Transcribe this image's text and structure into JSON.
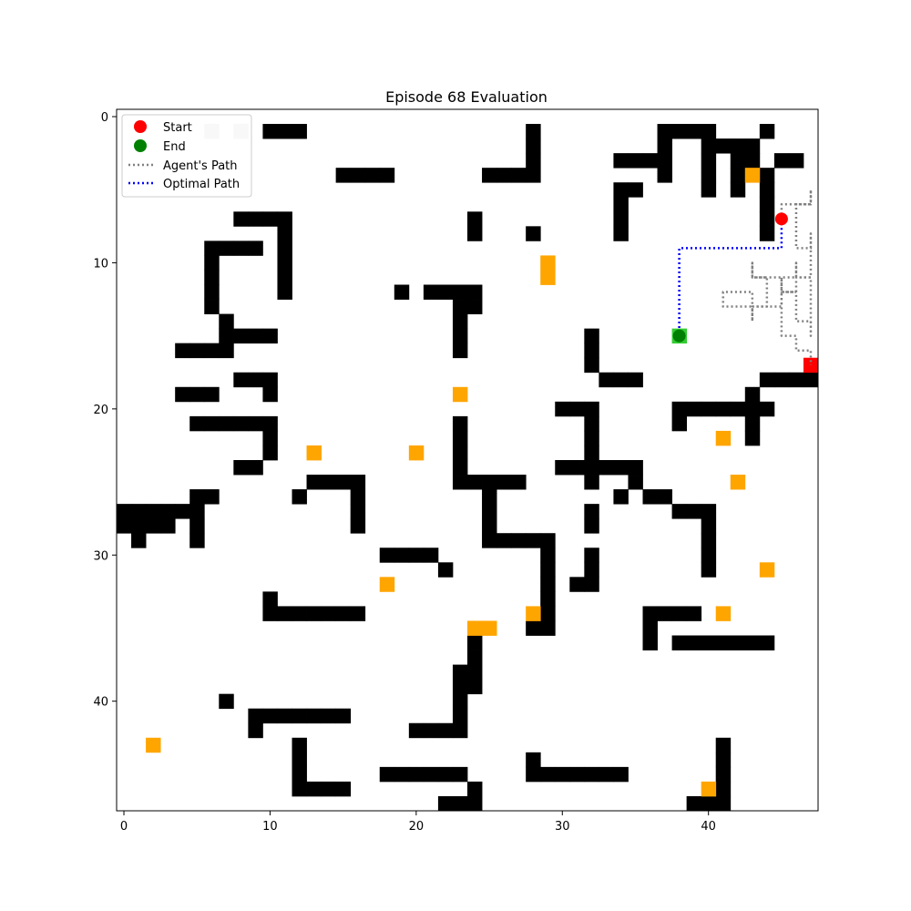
{
  "chart_data": {
    "type": "heatmap",
    "title": "Episode 68 Evaluation",
    "xlabel": "",
    "ylabel": "",
    "grid_size": 48,
    "xlim": [
      -0.5,
      47.5
    ],
    "ylim": [
      47.5,
      -0.5
    ],
    "x_ticks": [
      0,
      10,
      20,
      30,
      40
    ],
    "y_ticks": [
      0,
      10,
      20,
      30,
      40
    ],
    "grid": false,
    "legend": {
      "placement": "top-left",
      "entries": [
        {
          "label": "Start",
          "marker": "circle",
          "color": "#ff0000"
        },
        {
          "label": "End",
          "marker": "circle",
          "color": "#008000"
        },
        {
          "label": "Agent's Path",
          "marker": "dotted-line",
          "color": "#808080"
        },
        {
          "label": "Optimal Path",
          "marker": "dotted-line",
          "color": "#0000ff"
        }
      ]
    },
    "cell_colors": {
      "wall": "#000000",
      "item": "#ffa500",
      "visited": "#cccccc",
      "agent": "#ff0000",
      "goal": "#32cd32"
    },
    "walls": [
      [
        10,
        1
      ],
      [
        11,
        1
      ],
      [
        12,
        1
      ],
      [
        28,
        1
      ],
      [
        37,
        1
      ],
      [
        38,
        1
      ],
      [
        39,
        1
      ],
      [
        40,
        1
      ],
      [
        44,
        1
      ],
      [
        28,
        2
      ],
      [
        37,
        2
      ],
      [
        40,
        2
      ],
      [
        41,
        2
      ],
      [
        42,
        2
      ],
      [
        43,
        2
      ],
      [
        28,
        3
      ],
      [
        34,
        3
      ],
      [
        35,
        3
      ],
      [
        36,
        3
      ],
      [
        37,
        3
      ],
      [
        40,
        3
      ],
      [
        42,
        3
      ],
      [
        43,
        3
      ],
      [
        45,
        3
      ],
      [
        46,
        3
      ],
      [
        15,
        4
      ],
      [
        16,
        4
      ],
      [
        17,
        4
      ],
      [
        18,
        4
      ],
      [
        25,
        4
      ],
      [
        26,
        4
      ],
      [
        27,
        4
      ],
      [
        28,
        4
      ],
      [
        37,
        4
      ],
      [
        40,
        4
      ],
      [
        42,
        4
      ],
      [
        44,
        4
      ],
      [
        34,
        5
      ],
      [
        35,
        5
      ],
      [
        40,
        5
      ],
      [
        42,
        5
      ],
      [
        44,
        5
      ],
      [
        34,
        6
      ],
      [
        44,
        6
      ],
      [
        8,
        7
      ],
      [
        9,
        7
      ],
      [
        10,
        7
      ],
      [
        11,
        7
      ],
      [
        24,
        7
      ],
      [
        34,
        7
      ],
      [
        44,
        7
      ],
      [
        11,
        8
      ],
      [
        24,
        8
      ],
      [
        28,
        8
      ],
      [
        34,
        8
      ],
      [
        44,
        8
      ],
      [
        6,
        9
      ],
      [
        7,
        9
      ],
      [
        8,
        9
      ],
      [
        9,
        9
      ],
      [
        11,
        9
      ],
      [
        6,
        10
      ],
      [
        11,
        10
      ],
      [
        6,
        11
      ],
      [
        11,
        11
      ],
      [
        6,
        12
      ],
      [
        11,
        12
      ],
      [
        19,
        12
      ],
      [
        21,
        12
      ],
      [
        22,
        12
      ],
      [
        23,
        12
      ],
      [
        24,
        12
      ],
      [
        6,
        13
      ],
      [
        23,
        13
      ],
      [
        24,
        13
      ],
      [
        7,
        14
      ],
      [
        23,
        14
      ],
      [
        7,
        15
      ],
      [
        8,
        15
      ],
      [
        9,
        15
      ],
      [
        10,
        15
      ],
      [
        23,
        15
      ],
      [
        32,
        15
      ],
      [
        4,
        16
      ],
      [
        5,
        16
      ],
      [
        6,
        16
      ],
      [
        7,
        16
      ],
      [
        23,
        16
      ],
      [
        32,
        16
      ],
      [
        32,
        17
      ],
      [
        8,
        18
      ],
      [
        9,
        18
      ],
      [
        10,
        18
      ],
      [
        33,
        18
      ],
      [
        34,
        18
      ],
      [
        35,
        18
      ],
      [
        44,
        18
      ],
      [
        45,
        18
      ],
      [
        46,
        18
      ],
      [
        47,
        18
      ],
      [
        4,
        19
      ],
      [
        5,
        19
      ],
      [
        6,
        19
      ],
      [
        10,
        19
      ],
      [
        43,
        19
      ],
      [
        30,
        20
      ],
      [
        31,
        20
      ],
      [
        32,
        20
      ],
      [
        38,
        20
      ],
      [
        39,
        20
      ],
      [
        40,
        20
      ],
      [
        41,
        20
      ],
      [
        42,
        20
      ],
      [
        43,
        20
      ],
      [
        44,
        20
      ],
      [
        23,
        21
      ],
      [
        32,
        21
      ],
      [
        38,
        21
      ],
      [
        43,
        21
      ],
      [
        5,
        21
      ],
      [
        6,
        21
      ],
      [
        7,
        21
      ],
      [
        8,
        21
      ],
      [
        9,
        21
      ],
      [
        10,
        21
      ],
      [
        10,
        22
      ],
      [
        23,
        22
      ],
      [
        32,
        22
      ],
      [
        43,
        22
      ],
      [
        10,
        23
      ],
      [
        23,
        23
      ],
      [
        32,
        23
      ],
      [
        8,
        24
      ],
      [
        9,
        24
      ],
      [
        23,
        24
      ],
      [
        30,
        24
      ],
      [
        31,
        24
      ],
      [
        32,
        24
      ],
      [
        33,
        24
      ],
      [
        34,
        24
      ],
      [
        35,
        24
      ],
      [
        13,
        25
      ],
      [
        14,
        25
      ],
      [
        15,
        25
      ],
      [
        16,
        25
      ],
      [
        23,
        25
      ],
      [
        24,
        25
      ],
      [
        25,
        25
      ],
      [
        26,
        25
      ],
      [
        27,
        25
      ],
      [
        32,
        25
      ],
      [
        35,
        25
      ],
      [
        5,
        26
      ],
      [
        6,
        26
      ],
      [
        12,
        26
      ],
      [
        16,
        26
      ],
      [
        25,
        26
      ],
      [
        34,
        26
      ],
      [
        36,
        26
      ],
      [
        37,
        26
      ],
      [
        0,
        27
      ],
      [
        1,
        27
      ],
      [
        2,
        27
      ],
      [
        3,
        27
      ],
      [
        4,
        27
      ],
      [
        5,
        27
      ],
      [
        16,
        27
      ],
      [
        25,
        27
      ],
      [
        32,
        27
      ],
      [
        38,
        27
      ],
      [
        39,
        27
      ],
      [
        40,
        27
      ],
      [
        0,
        28
      ],
      [
        1,
        28
      ],
      [
        2,
        28
      ],
      [
        3,
        28
      ],
      [
        5,
        28
      ],
      [
        16,
        28
      ],
      [
        25,
        28
      ],
      [
        32,
        28
      ],
      [
        40,
        28
      ],
      [
        1,
        29
      ],
      [
        5,
        29
      ],
      [
        25,
        29
      ],
      [
        26,
        29
      ],
      [
        27,
        29
      ],
      [
        28,
        29
      ],
      [
        29,
        29
      ],
      [
        40,
        29
      ],
      [
        18,
        30
      ],
      [
        19,
        30
      ],
      [
        20,
        30
      ],
      [
        21,
        30
      ],
      [
        29,
        30
      ],
      [
        32,
        30
      ],
      [
        40,
        30
      ],
      [
        22,
        31
      ],
      [
        29,
        31
      ],
      [
        32,
        31
      ],
      [
        40,
        31
      ],
      [
        29,
        32
      ],
      [
        31,
        32
      ],
      [
        32,
        32
      ],
      [
        10,
        33
      ],
      [
        29,
        33
      ],
      [
        10,
        34
      ],
      [
        11,
        34
      ],
      [
        12,
        34
      ],
      [
        13,
        34
      ],
      [
        14,
        34
      ],
      [
        15,
        34
      ],
      [
        16,
        34
      ],
      [
        29,
        34
      ],
      [
        36,
        34
      ],
      [
        37,
        34
      ],
      [
        38,
        34
      ],
      [
        39,
        34
      ],
      [
        28,
        35
      ],
      [
        29,
        35
      ],
      [
        36,
        35
      ],
      [
        24,
        36
      ],
      [
        36,
        36
      ],
      [
        38,
        36
      ],
      [
        39,
        36
      ],
      [
        40,
        36
      ],
      [
        41,
        36
      ],
      [
        42,
        36
      ],
      [
        43,
        36
      ],
      [
        44,
        36
      ],
      [
        24,
        37
      ],
      [
        23,
        38
      ],
      [
        24,
        38
      ],
      [
        23,
        39
      ],
      [
        24,
        39
      ],
      [
        7,
        40
      ],
      [
        23,
        40
      ],
      [
        9,
        41
      ],
      [
        10,
        41
      ],
      [
        11,
        41
      ],
      [
        12,
        41
      ],
      [
        13,
        41
      ],
      [
        14,
        41
      ],
      [
        15,
        41
      ],
      [
        23,
        41
      ],
      [
        9,
        42
      ],
      [
        20,
        42
      ],
      [
        21,
        42
      ],
      [
        22,
        42
      ],
      [
        23,
        42
      ],
      [
        12,
        43
      ],
      [
        41,
        43
      ],
      [
        12,
        44
      ],
      [
        28,
        44
      ],
      [
        41,
        44
      ],
      [
        12,
        45
      ],
      [
        18,
        45
      ],
      [
        19,
        45
      ],
      [
        20,
        45
      ],
      [
        21,
        45
      ],
      [
        22,
        45
      ],
      [
        23,
        45
      ],
      [
        28,
        45
      ],
      [
        29,
        45
      ],
      [
        30,
        45
      ],
      [
        31,
        45
      ],
      [
        32,
        45
      ],
      [
        33,
        45
      ],
      [
        34,
        45
      ],
      [
        41,
        45
      ],
      [
        12,
        46
      ],
      [
        13,
        46
      ],
      [
        14,
        46
      ],
      [
        15,
        46
      ],
      [
        24,
        46
      ],
      [
        41,
        46
      ],
      [
        22,
        47
      ],
      [
        23,
        47
      ],
      [
        24,
        47
      ],
      [
        39,
        47
      ],
      [
        40,
        47
      ],
      [
        41,
        47
      ]
    ],
    "items": [
      [
        43,
        4
      ],
      [
        29,
        10
      ],
      [
        29,
        11
      ],
      [
        23,
        19
      ],
      [
        41,
        22
      ],
      [
        13,
        23
      ],
      [
        20,
        23
      ],
      [
        42,
        25
      ],
      [
        44,
        31
      ],
      [
        18,
        32
      ],
      [
        28,
        34
      ],
      [
        41,
        34
      ],
      [
        24,
        35
      ],
      [
        25,
        35
      ],
      [
        2,
        43
      ],
      [
        40,
        46
      ]
    ],
    "visited_cells": [
      [
        6,
        1
      ],
      [
        8,
        1
      ]
    ],
    "agent_cell": [
      47,
      17
    ],
    "goal_cell": [
      38,
      15
    ],
    "start": {
      "x": 45,
      "y": 7
    },
    "end": {
      "x": 38,
      "y": 15
    },
    "optimal_path": [
      [
        45,
        7
      ],
      [
        45,
        8
      ],
      [
        45,
        9
      ],
      [
        44,
        9
      ],
      [
        43,
        9
      ],
      [
        42,
        9
      ],
      [
        41,
        9
      ],
      [
        40,
        9
      ],
      [
        39,
        9
      ],
      [
        38,
        9
      ],
      [
        38,
        10
      ],
      [
        38,
        11
      ],
      [
        38,
        12
      ],
      [
        38,
        13
      ],
      [
        38,
        14
      ],
      [
        38,
        15
      ]
    ],
    "agent_path": [
      [
        45,
        7
      ],
      [
        45,
        6
      ],
      [
        46,
        6
      ],
      [
        47,
        6
      ],
      [
        47,
        5
      ],
      [
        47,
        6
      ],
      [
        46,
        6
      ],
      [
        46,
        7
      ],
      [
        46,
        8
      ],
      [
        46,
        9
      ],
      [
        47,
        9
      ],
      [
        47,
        8
      ],
      [
        47,
        9
      ],
      [
        47,
        10
      ],
      [
        47,
        11
      ],
      [
        46,
        11
      ],
      [
        46,
        10
      ],
      [
        46,
        11
      ],
      [
        45,
        11
      ],
      [
        44,
        11
      ],
      [
        43,
        11
      ],
      [
        43,
        10
      ],
      [
        43,
        11
      ],
      [
        44,
        11
      ],
      [
        44,
        12
      ],
      [
        44,
        13
      ],
      [
        43,
        13
      ],
      [
        43,
        12
      ],
      [
        42,
        12
      ],
      [
        41,
        12
      ],
      [
        41,
        13
      ],
      [
        42,
        13
      ],
      [
        43,
        13
      ],
      [
        43,
        14
      ],
      [
        43,
        13
      ],
      [
        44,
        13
      ],
      [
        45,
        13
      ],
      [
        45,
        12
      ],
      [
        45,
        11
      ],
      [
        45,
        12
      ],
      [
        46,
        12
      ],
      [
        46,
        13
      ],
      [
        46,
        14
      ],
      [
        47,
        14
      ],
      [
        47,
        15
      ],
      [
        47,
        14
      ],
      [
        47,
        13
      ],
      [
        47,
        12
      ],
      [
        47,
        11
      ],
      [
        46,
        11
      ],
      [
        46,
        12
      ],
      [
        45,
        12
      ],
      [
        45,
        13
      ],
      [
        45,
        14
      ],
      [
        45,
        15
      ],
      [
        46,
        15
      ],
      [
        46,
        16
      ],
      [
        47,
        16
      ],
      [
        47,
        17
      ]
    ]
  }
}
